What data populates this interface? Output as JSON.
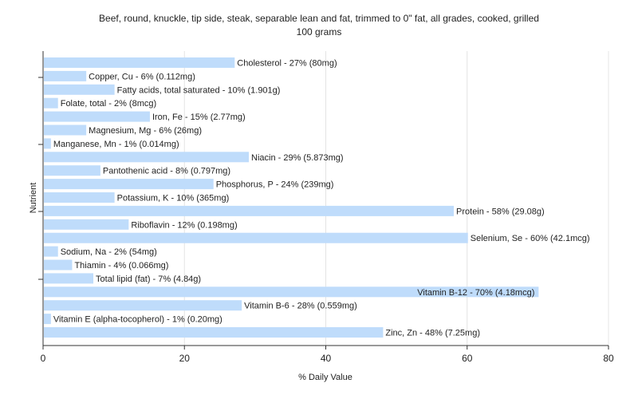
{
  "chart_data": {
    "type": "bar",
    "orientation": "horizontal",
    "title": "Beef, round, knuckle, tip side, steak, separable lean and fat, trimmed to 0\" fat, all grades, cooked, grilled",
    "subtitle": "100 grams",
    "xlabel": "% Daily Value",
    "ylabel": "Nutrient",
    "xlim": [
      0,
      80
    ],
    "xticks": [
      0,
      20,
      40,
      60,
      80
    ],
    "grid": true,
    "colors": {
      "bar": "#bfdcfb",
      "grid": "#e4e4e4",
      "axis": "#333333",
      "text": "#222222"
    },
    "categories": [
      "Cholesterol",
      "Copper, Cu",
      "Fatty acids, total saturated",
      "Folate, total",
      "Iron, Fe",
      "Magnesium, Mg",
      "Manganese, Mn",
      "Niacin",
      "Pantothenic acid",
      "Phosphorus, P",
      "Potassium, K",
      "Protein",
      "Riboflavin",
      "Selenium, Se",
      "Sodium, Na",
      "Thiamin",
      "Total lipid (fat)",
      "Vitamin B-12",
      "Vitamin B-6",
      "Vitamin E (alpha-tocopherol)",
      "Zinc, Zn"
    ],
    "values": [
      27,
      6,
      10,
      2,
      15,
      6,
      1,
      29,
      8,
      24,
      10,
      58,
      12,
      60,
      2,
      4,
      7,
      70,
      28,
      1,
      48
    ],
    "data_labels": [
      "Cholesterol - 27% (80mg)",
      "Copper, Cu - 6% (0.112mg)",
      "Fatty acids, total saturated - 10% (1.901g)",
      "Folate, total - 2% (8mcg)",
      "Iron, Fe - 15% (2.77mg)",
      "Magnesium, Mg - 6% (26mg)",
      "Manganese, Mn - 1% (0.014mg)",
      "Niacin - 29% (5.873mg)",
      "Pantothenic acid - 8% (0.797mg)",
      "Phosphorus, P - 24% (239mg)",
      "Potassium, K - 10% (365mg)",
      "Protein - 58% (29.08g)",
      "Riboflavin - 12% (0.198mg)",
      "Selenium, Se - 60% (42.1mcg)",
      "Sodium, Na - 2% (54mg)",
      "Thiamin - 4% (0.066mg)",
      "Total lipid (fat) - 7% (4.84g)",
      "Vitamin B-12 - 70% (4.18mcg)",
      "Vitamin B-6 - 28% (0.559mg)",
      "Vitamin E (alpha-tocopherol) - 1% (0.20mg)",
      "Zinc, Zn - 48% (7.25mg)"
    ]
  }
}
